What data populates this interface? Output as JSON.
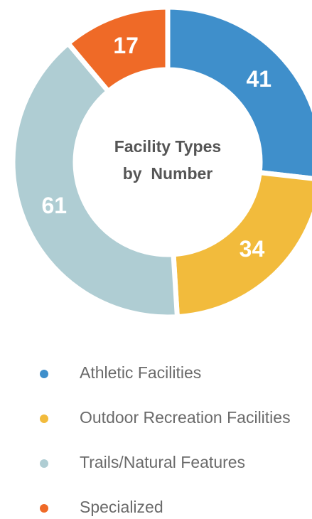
{
  "chart_data": {
    "type": "pie",
    "title": [
      "Facility Types",
      "by  Number"
    ],
    "categories": [
      "Athletic Facilities",
      "Outdoor Recreation Facilities",
      "Trails/Natural Features",
      "Specialized"
    ],
    "values": [
      41,
      34,
      61,
      17
    ],
    "colors": [
      "#3f8fcb",
      "#f2bb3c",
      "#afcdd3",
      "#ef6a27"
    ],
    "donut": true
  }
}
